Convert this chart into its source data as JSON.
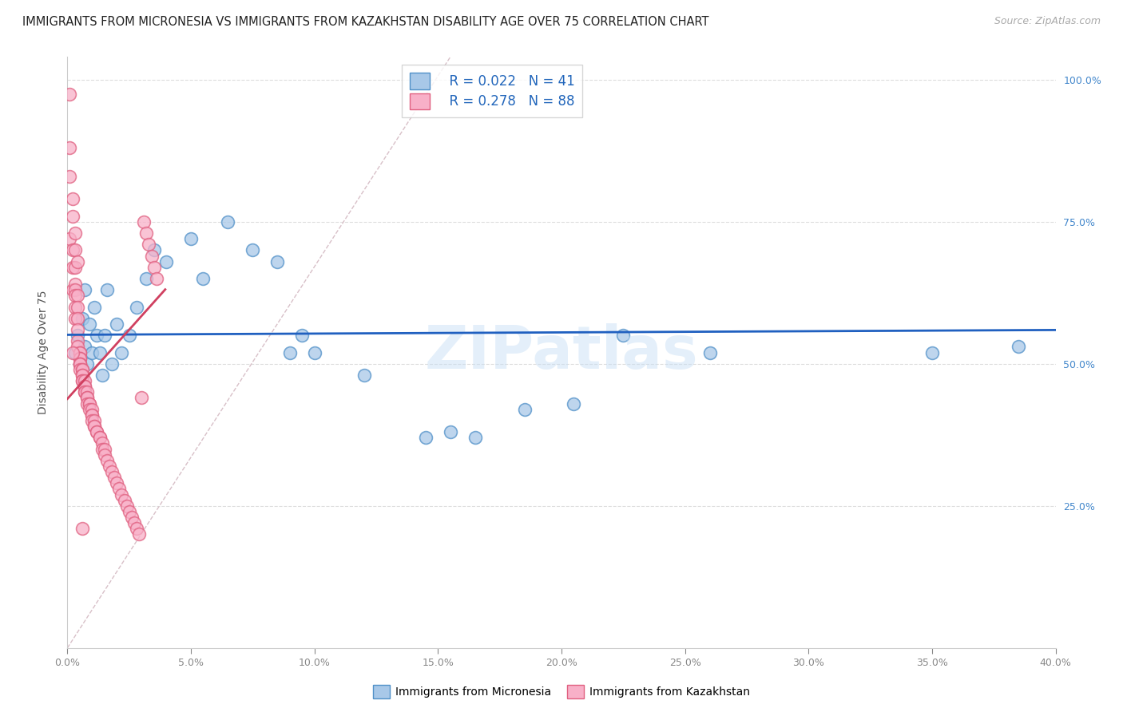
{
  "title": "IMMIGRANTS FROM MICRONESIA VS IMMIGRANTS FROM KAZAKHSTAN DISABILITY AGE OVER 75 CORRELATION CHART",
  "source": "Source: ZipAtlas.com",
  "ylabel": "Disability Age Over 75",
  "watermark": "ZIPatlas",
  "blue_color": "#a8c8e8",
  "blue_edge_color": "#5090c8",
  "pink_color": "#f8b0c8",
  "pink_edge_color": "#e06080",
  "blue_line_color": "#2060c0",
  "pink_line_color": "#d04060",
  "diag_color": "#d8c0c8",
  "legend_blue_R": "0.022",
  "legend_blue_N": "41",
  "legend_pink_R": "0.278",
  "legend_pink_N": "88",
  "xlim": [
    0.0,
    0.4
  ],
  "ylim": [
    0.0,
    1.04
  ],
  "xtick_values": [
    0.0,
    0.05,
    0.1,
    0.15,
    0.2,
    0.25,
    0.3,
    0.35,
    0.4
  ],
  "ytick_right_values": [
    1.0,
    0.75,
    0.5,
    0.25
  ],
  "ytick_right_labels": [
    "100.0%",
    "75.0%",
    "50.0%",
    "25.0%"
  ],
  "blue_x": [
    0.003,
    0.004,
    0.005,
    0.006,
    0.007,
    0.007,
    0.008,
    0.009,
    0.01,
    0.011,
    0.012,
    0.013,
    0.014,
    0.015,
    0.016,
    0.018,
    0.02,
    0.022,
    0.025,
    0.028,
    0.032,
    0.035,
    0.04,
    0.05,
    0.055,
    0.065,
    0.075,
    0.085,
    0.09,
    0.095,
    0.1,
    0.12,
    0.145,
    0.155,
    0.165,
    0.185,
    0.205,
    0.225,
    0.26,
    0.35,
    0.385
  ],
  "blue_y": [
    0.52,
    0.55,
    0.5,
    0.58,
    0.63,
    0.53,
    0.5,
    0.57,
    0.52,
    0.6,
    0.55,
    0.52,
    0.48,
    0.55,
    0.63,
    0.5,
    0.57,
    0.52,
    0.55,
    0.6,
    0.65,
    0.7,
    0.68,
    0.72,
    0.65,
    0.75,
    0.7,
    0.68,
    0.52,
    0.55,
    0.52,
    0.48,
    0.37,
    0.38,
    0.37,
    0.42,
    0.43,
    0.55,
    0.52,
    0.52,
    0.53
  ],
  "pink_x": [
    0.001,
    0.001,
    0.001,
    0.001,
    0.002,
    0.002,
    0.002,
    0.002,
    0.002,
    0.003,
    0.003,
    0.003,
    0.003,
    0.003,
    0.003,
    0.003,
    0.004,
    0.004,
    0.004,
    0.004,
    0.004,
    0.004,
    0.005,
    0.005,
    0.005,
    0.005,
    0.005,
    0.005,
    0.005,
    0.005,
    0.006,
    0.006,
    0.006,
    0.006,
    0.006,
    0.006,
    0.007,
    0.007,
    0.007,
    0.007,
    0.007,
    0.008,
    0.008,
    0.008,
    0.008,
    0.009,
    0.009,
    0.009,
    0.01,
    0.01,
    0.01,
    0.01,
    0.011,
    0.011,
    0.011,
    0.012,
    0.012,
    0.013,
    0.013,
    0.014,
    0.014,
    0.015,
    0.015,
    0.016,
    0.017,
    0.018,
    0.019,
    0.02,
    0.021,
    0.022,
    0.023,
    0.024,
    0.025,
    0.026,
    0.027,
    0.028,
    0.029,
    0.03,
    0.031,
    0.032,
    0.033,
    0.034,
    0.035,
    0.036,
    0.002,
    0.003,
    0.004,
    0.006
  ],
  "pink_y": [
    0.975,
    0.88,
    0.83,
    0.72,
    0.79,
    0.76,
    0.7,
    0.67,
    0.63,
    0.7,
    0.67,
    0.64,
    0.63,
    0.62,
    0.6,
    0.58,
    0.62,
    0.6,
    0.58,
    0.56,
    0.54,
    0.53,
    0.52,
    0.52,
    0.51,
    0.51,
    0.5,
    0.5,
    0.5,
    0.49,
    0.49,
    0.49,
    0.48,
    0.48,
    0.47,
    0.47,
    0.47,
    0.46,
    0.46,
    0.45,
    0.45,
    0.45,
    0.44,
    0.44,
    0.43,
    0.43,
    0.43,
    0.42,
    0.42,
    0.41,
    0.41,
    0.4,
    0.4,
    0.39,
    0.39,
    0.38,
    0.38,
    0.37,
    0.37,
    0.36,
    0.35,
    0.35,
    0.34,
    0.33,
    0.32,
    0.31,
    0.3,
    0.29,
    0.28,
    0.27,
    0.26,
    0.25,
    0.24,
    0.23,
    0.22,
    0.21,
    0.2,
    0.44,
    0.75,
    0.73,
    0.71,
    0.69,
    0.67,
    0.65,
    0.52,
    0.73,
    0.68,
    0.21
  ]
}
